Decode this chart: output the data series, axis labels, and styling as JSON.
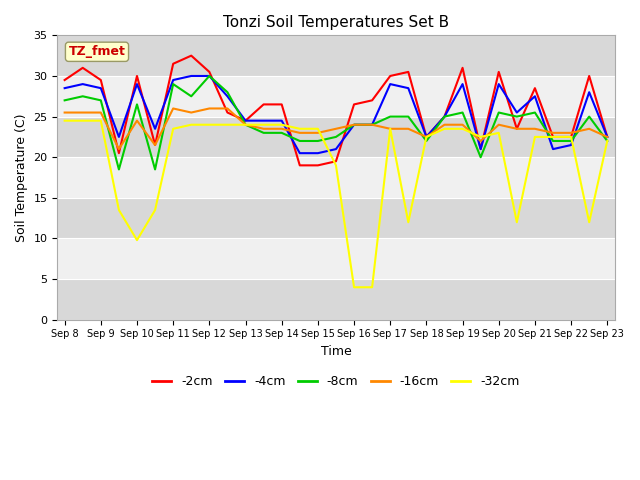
{
  "title": "Tonzi Soil Temperatures Set B",
  "xlabel": "Time",
  "ylabel": "Soil Temperature (C)",
  "ylim": [
    0,
    35
  ],
  "annotation_label": "TZ_fmet",
  "annotation_color": "#cc0000",
  "annotation_bg": "#ffffcc",
  "series_order": [
    "-2cm",
    "-4cm",
    "-8cm",
    "-16cm",
    "-32cm"
  ],
  "series": {
    "-2cm": {
      "color": "#ff0000",
      "lw": 1.5
    },
    "-4cm": {
      "color": "#0000ff",
      "lw": 1.5
    },
    "-8cm": {
      "color": "#00cc00",
      "lw": 1.5
    },
    "-16cm": {
      "color": "#ff8800",
      "lw": 1.5
    },
    "-32cm": {
      "color": "#ffff00",
      "lw": 1.5
    }
  },
  "x_labels": [
    "Sep 8",
    "Sep 9",
    "Sep 10",
    "Sep 11",
    "Sep 12",
    "Sep 13",
    "Sep 14",
    "Sep 15",
    "Sep 16",
    "Sep 17",
    "Sep 18",
    "Sep 19",
    "Sep 20",
    "Sep 21",
    "Sep 22",
    "Sep 23"
  ],
  "yticks": [
    0,
    5,
    10,
    15,
    20,
    25,
    30,
    35
  ],
  "data": {
    "-2cm": [
      29.5,
      31.0,
      29.5,
      20.5,
      30.0,
      21.5,
      31.5,
      32.5,
      30.5,
      25.5,
      24.5,
      26.5,
      26.5,
      19.0,
      19.0,
      19.5,
      26.5,
      27.0,
      30.0,
      30.5,
      22.5,
      25.0,
      31.0,
      21.0,
      30.5,
      23.5,
      28.5,
      22.5,
      22.5,
      30.0,
      22.5
    ],
    "-4cm": [
      28.5,
      29.0,
      28.5,
      22.5,
      29.0,
      23.5,
      29.5,
      30.0,
      30.0,
      27.5,
      24.5,
      24.5,
      24.5,
      20.5,
      20.5,
      21.0,
      24.0,
      24.0,
      29.0,
      28.5,
      22.5,
      25.0,
      29.0,
      21.0,
      29.0,
      25.5,
      27.5,
      21.0,
      21.5,
      28.0,
      22.5
    ],
    "-8cm": [
      27.0,
      27.5,
      27.0,
      18.5,
      26.5,
      18.5,
      29.0,
      27.5,
      30.0,
      28.0,
      24.0,
      23.0,
      23.0,
      22.0,
      22.0,
      22.5,
      24.0,
      24.0,
      25.0,
      25.0,
      22.0,
      25.0,
      25.5,
      20.0,
      25.5,
      25.0,
      25.5,
      22.0,
      22.0,
      25.0,
      22.0
    ],
    "-16cm": [
      25.5,
      25.5,
      25.5,
      21.0,
      24.5,
      21.5,
      26.0,
      25.5,
      26.0,
      26.0,
      24.0,
      23.5,
      23.5,
      23.0,
      23.0,
      23.5,
      24.0,
      24.0,
      23.5,
      23.5,
      22.5,
      24.0,
      24.0,
      22.0,
      24.0,
      23.5,
      23.5,
      23.0,
      23.0,
      23.5,
      22.5
    ],
    "-32cm": [
      24.5,
      24.5,
      24.5,
      13.5,
      9.8,
      13.5,
      23.5,
      24.0,
      24.0,
      24.0,
      24.0,
      24.0,
      24.0,
      23.5,
      23.5,
      19.0,
      4.0,
      4.0,
      23.5,
      12.0,
      22.5,
      23.5,
      23.5,
      22.5,
      23.0,
      12.0,
      22.5,
      22.5,
      22.5,
      12.0,
      22.0
    ]
  }
}
